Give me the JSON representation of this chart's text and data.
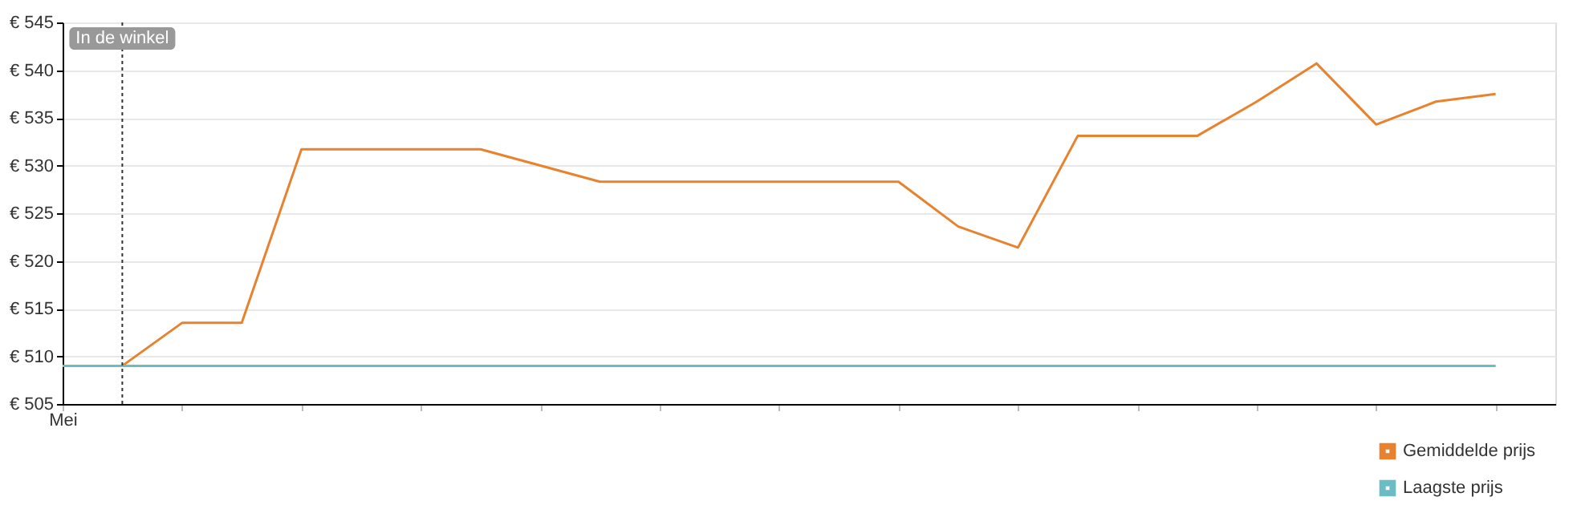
{
  "chart_data": {
    "type": "line",
    "categories": [
      "Mei",
      null,
      null,
      null,
      null,
      null,
      null,
      null,
      null,
      null,
      null,
      null,
      null,
      null,
      null,
      null,
      null,
      null,
      null,
      null,
      null,
      null,
      null,
      null,
      null,
      null
    ],
    "series": [
      {
        "name": "Gemiddelde prijs",
        "color": "#e8822e",
        "values": [
          null,
          509,
          513.5,
          513.5,
          531.7,
          531.7,
          531.7,
          531.7,
          530,
          528.3,
          528.3,
          528.3,
          528.3,
          528.3,
          528.3,
          523.6,
          521.4,
          533.1,
          533.1,
          533.1,
          536.7,
          540.7,
          534.3,
          536.7,
          537.5,
          null
        ]
      },
      {
        "name": "Laagste prijs",
        "color": "#6cbcc4",
        "values": [
          509,
          509,
          509,
          509,
          509,
          509,
          509,
          509,
          509,
          509,
          509,
          509,
          509,
          509,
          509,
          509,
          509,
          509,
          509,
          509,
          509,
          509,
          509,
          509,
          509,
          null
        ]
      }
    ],
    "ylim": [
      505,
      545
    ],
    "yticks": [
      {
        "value": 505,
        "label": "€ 505"
      },
      {
        "value": 510,
        "label": "€ 510"
      },
      {
        "value": 515,
        "label": "€ 515"
      },
      {
        "value": 520,
        "label": "€ 520"
      },
      {
        "value": 525,
        "label": "€ 525"
      },
      {
        "value": 530,
        "label": "€ 530"
      },
      {
        "value": 535,
        "label": "€ 535"
      },
      {
        "value": 540,
        "label": "€ 540"
      },
      {
        "value": 545,
        "label": "€ 545"
      }
    ],
    "annotations": [
      "In de winkel"
    ],
    "grid": "y",
    "legend": "bottom right",
    "marker": "none",
    "line_style": "solid"
  }
}
